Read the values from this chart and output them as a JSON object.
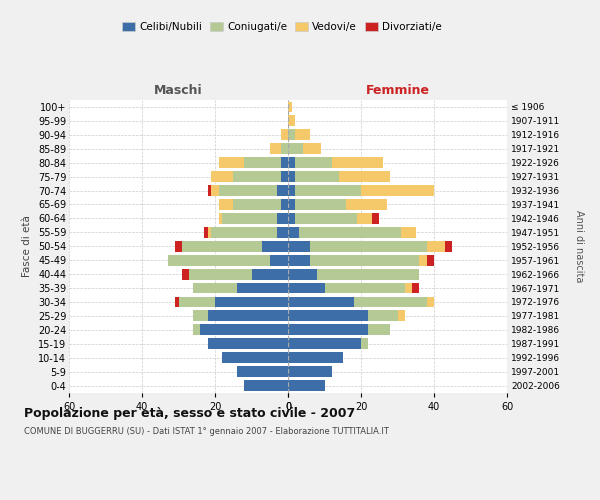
{
  "age_groups": [
    "0-4",
    "5-9",
    "10-14",
    "15-19",
    "20-24",
    "25-29",
    "30-34",
    "35-39",
    "40-44",
    "45-49",
    "50-54",
    "55-59",
    "60-64",
    "65-69",
    "70-74",
    "75-79",
    "80-84",
    "85-89",
    "90-94",
    "95-99",
    "100+"
  ],
  "birth_years": [
    "2002-2006",
    "1997-2001",
    "1992-1996",
    "1987-1991",
    "1982-1986",
    "1977-1981",
    "1972-1976",
    "1967-1971",
    "1962-1966",
    "1957-1961",
    "1952-1956",
    "1947-1951",
    "1942-1946",
    "1937-1941",
    "1932-1936",
    "1927-1931",
    "1922-1926",
    "1917-1921",
    "1912-1916",
    "1907-1911",
    "≤ 1906"
  ],
  "male": {
    "celibi": [
      12,
      14,
      18,
      22,
      24,
      22,
      20,
      14,
      10,
      5,
      7,
      3,
      3,
      2,
      3,
      2,
      2,
      0,
      0,
      0,
      0
    ],
    "coniugati": [
      0,
      0,
      0,
      0,
      2,
      4,
      10,
      12,
      17,
      28,
      22,
      18,
      15,
      13,
      16,
      13,
      10,
      2,
      0,
      0,
      0
    ],
    "vedovi": [
      0,
      0,
      0,
      0,
      0,
      0,
      0,
      0,
      0,
      0,
      0,
      1,
      1,
      4,
      2,
      6,
      7,
      3,
      2,
      0,
      0
    ],
    "divorziati": [
      0,
      0,
      0,
      0,
      0,
      0,
      1,
      0,
      2,
      0,
      2,
      1,
      0,
      0,
      1,
      0,
      0,
      0,
      0,
      0,
      0
    ]
  },
  "female": {
    "nubili": [
      10,
      12,
      15,
      20,
      22,
      22,
      18,
      10,
      8,
      6,
      6,
      3,
      2,
      2,
      2,
      2,
      2,
      0,
      0,
      0,
      0
    ],
    "coniugate": [
      0,
      0,
      0,
      2,
      6,
      8,
      20,
      22,
      28,
      30,
      32,
      28,
      17,
      14,
      18,
      12,
      10,
      4,
      2,
      0,
      0
    ],
    "vedove": [
      0,
      0,
      0,
      0,
      0,
      2,
      2,
      2,
      0,
      2,
      5,
      4,
      4,
      11,
      20,
      14,
      14,
      5,
      4,
      2,
      1
    ],
    "divorziate": [
      0,
      0,
      0,
      0,
      0,
      0,
      0,
      2,
      0,
      2,
      2,
      0,
      2,
      0,
      0,
      0,
      0,
      0,
      0,
      0,
      0
    ]
  },
  "colors": {
    "celibi": "#3d6ea8",
    "coniugati": "#b5c994",
    "vedovi": "#f5c96a",
    "divorziati": "#cc2222"
  },
  "xlim": 60,
  "title": "Popolazione per età, sesso e stato civile - 2007",
  "subtitle": "COMUNE DI BUGGERRU (SU) - Dati ISTAT 1° gennaio 2007 - Elaborazione TUTTITALIA.IT",
  "ylabel_left": "Fasce di età",
  "ylabel_right": "Anni di nascita",
  "xlabel_maschi": "Maschi",
  "xlabel_femmine": "Femmine",
  "legend_labels": [
    "Celibi/Nubili",
    "Coniugati/e",
    "Vedovi/e",
    "Divorziati/e"
  ],
  "background_color": "#f0f0f0",
  "plot_bg": "#ffffff"
}
